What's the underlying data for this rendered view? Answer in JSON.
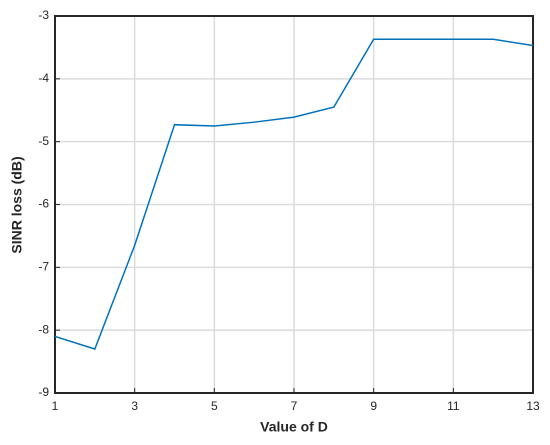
{
  "chart_data": {
    "type": "line",
    "xlabel": "Value of D",
    "ylabel": "SINR loss (dB)",
    "x": [
      1,
      2,
      3,
      4,
      5,
      6,
      7,
      8,
      9,
      10,
      11,
      12,
      13
    ],
    "series": [
      {
        "name": "SINR loss",
        "color": "#0072bd",
        "values": [
          -8.1,
          -8.3,
          -6.65,
          -4.73,
          -4.75,
          -4.69,
          -4.61,
          -4.45,
          -3.37,
          -3.37,
          -3.37,
          -3.37,
          -3.47
        ]
      }
    ],
    "xlim": [
      1,
      13
    ],
    "xticks": [
      1,
      3,
      5,
      7,
      9,
      11,
      13
    ],
    "ylim": [
      -9,
      -3
    ],
    "yticks": [
      -9,
      -8,
      -7,
      -6,
      -5,
      -4,
      -3
    ],
    "grid": true,
    "legend": false
  }
}
